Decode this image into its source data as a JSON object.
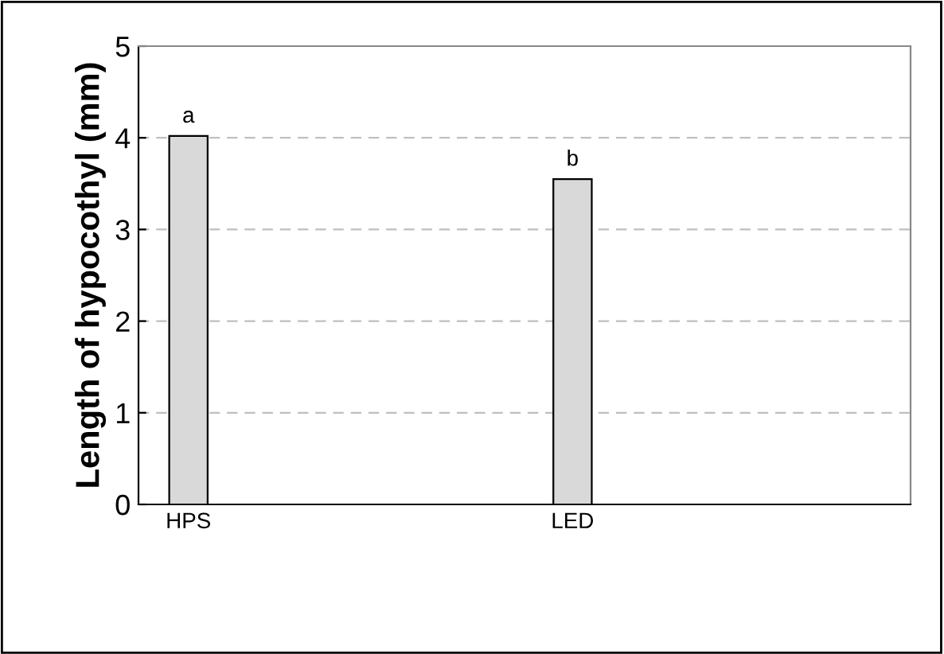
{
  "chart_data": {
    "type": "bar",
    "ylabel": "Length of hypocothyl (mm)",
    "categories": [
      "HPS",
      "LED"
    ],
    "values": [
      4.02,
      3.55
    ],
    "color": "#d9d9d9",
    "ylim": [
      0,
      5
    ],
    "yticks": [
      0,
      1,
      2,
      3,
      4,
      5
    ],
    "grid": "y",
    "annotations": [
      {
        "text": "a",
        "x": "HPS",
        "y": 4.02
      },
      {
        "text": "b",
        "x": "LED",
        "y": 3.55
      }
    ]
  }
}
